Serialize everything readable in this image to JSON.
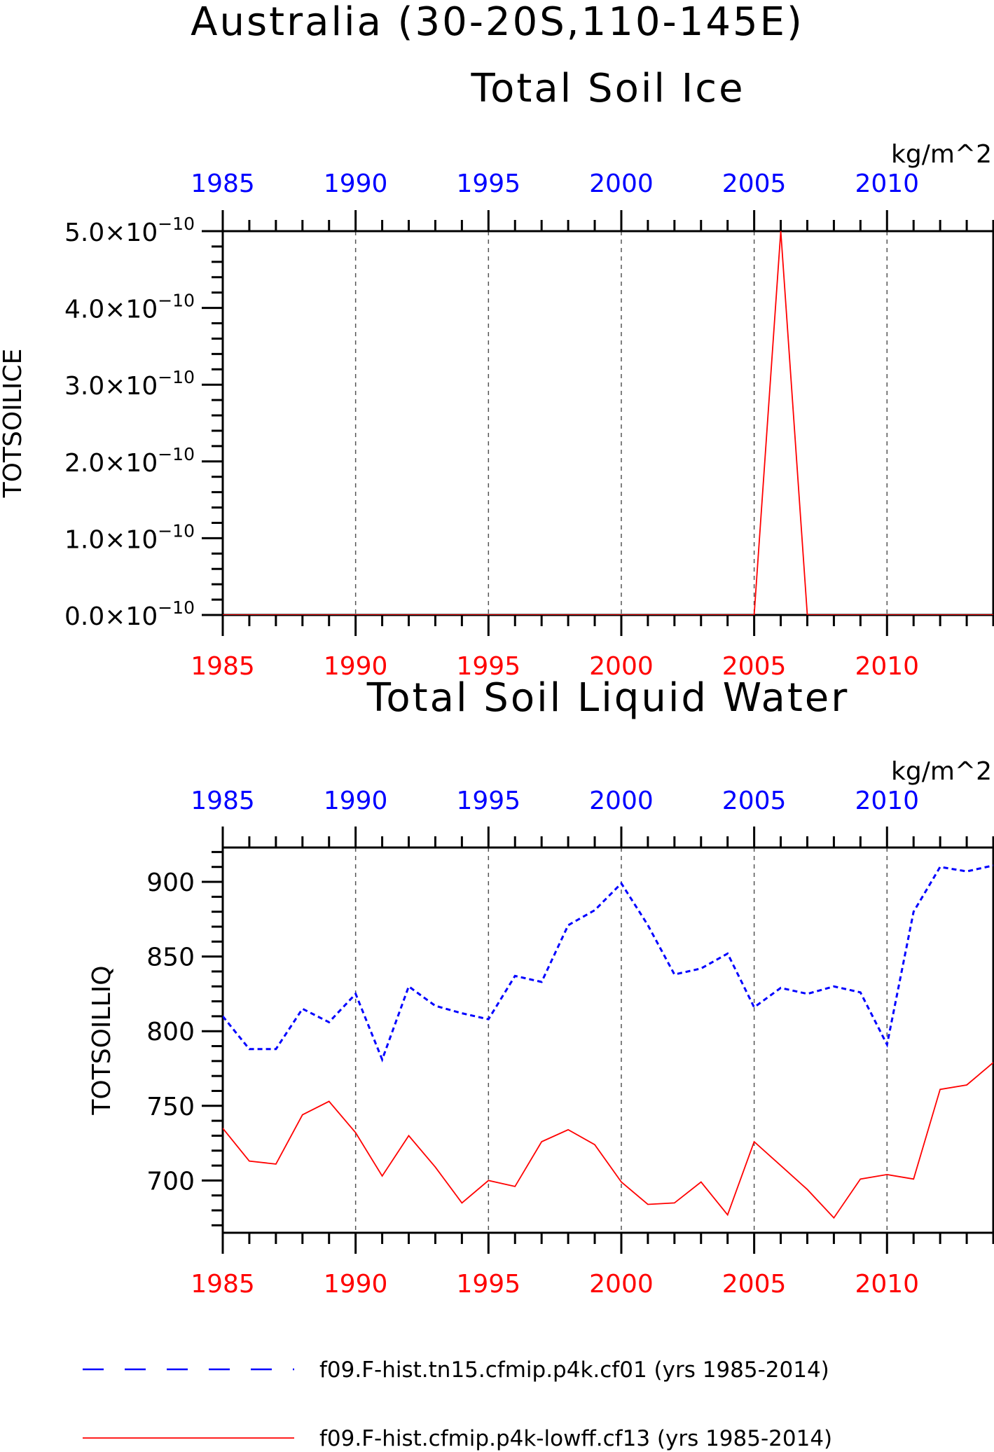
{
  "main_title": "Australia (30-20S,110-145E)",
  "legend": {
    "entries": [
      {
        "label": "f09.F-hist.tn15.cfmip.p4k.cf01 (yrs 1985-2014)",
        "color": "#0000ff",
        "style": "dashed"
      },
      {
        "label": "f09.F-hist.cfmip.p4k-lowff.cf13 (yrs 1985-2014)",
        "color": "#ff0000",
        "style": "solid"
      }
    ]
  },
  "chart_data": [
    {
      "type": "line",
      "title": "Total Soil Ice",
      "ylabel": "TOTSOILICE",
      "units": "kg/m^2",
      "xlim": [
        1985,
        2014
      ],
      "ylim": [
        0,
        5e-10
      ],
      "x_ticks": [
        1985,
        1990,
        1995,
        2000,
        2005,
        2010
      ],
      "y_ticks": [
        {
          "value": 0,
          "mantissa": "0.0×10",
          "exp": "−10"
        },
        {
          "value": 1e-10,
          "mantissa": "1.0×10",
          "exp": "−10"
        },
        {
          "value": 2e-10,
          "mantissa": "2.0×10",
          "exp": "−10"
        },
        {
          "value": 3e-10,
          "mantissa": "3.0×10",
          "exp": "−10"
        },
        {
          "value": 4e-10,
          "mantissa": "4.0×10",
          "exp": "−10"
        },
        {
          "value": 5e-10,
          "mantissa": "5.0×10",
          "exp": "−10"
        }
      ],
      "grid": "vertical dashed at major x ticks",
      "series": [
        {
          "color": "#ff0000",
          "style": "solid",
          "x": [
            1985,
            1986,
            1987,
            1988,
            1989,
            1990,
            1991,
            1992,
            1993,
            1994,
            1995,
            1996,
            1997,
            1998,
            1999,
            2000,
            2001,
            2002,
            2003,
            2004,
            2005,
            2006,
            2007,
            2008,
            2009,
            2010,
            2011,
            2012,
            2013,
            2014
          ],
          "y": [
            0,
            0,
            0,
            0,
            0,
            0,
            0,
            0,
            0,
            0,
            0,
            0,
            0,
            0,
            0,
            0,
            0,
            0,
            0,
            0,
            0,
            5e-10,
            0,
            0,
            0,
            0,
            0,
            0,
            0,
            0
          ]
        }
      ]
    },
    {
      "type": "line",
      "title": "Total Soil Liquid Water",
      "ylabel": "TOTSOILLIQ",
      "units": "kg/m^2",
      "xlim": [
        1985,
        2014
      ],
      "ylim": [
        665,
        923
      ],
      "x_ticks": [
        1985,
        1990,
        1995,
        2000,
        2005,
        2010
      ],
      "y_ticks": [
        {
          "value": 700,
          "label": "700"
        },
        {
          "value": 750,
          "label": "750"
        },
        {
          "value": 800,
          "label": "800"
        },
        {
          "value": 850,
          "label": "850"
        },
        {
          "value": 900,
          "label": "900"
        }
      ],
      "grid": "vertical dashed at major x ticks",
      "series": [
        {
          "color": "#0000ff",
          "style": "dashed",
          "x": [
            1985,
            1986,
            1987,
            1988,
            1989,
            1990,
            1991,
            1992,
            1993,
            1994,
            1995,
            1996,
            1997,
            1998,
            1999,
            2000,
            2001,
            2002,
            2003,
            2004,
            2005,
            2006,
            2007,
            2008,
            2009,
            2010,
            2011,
            2012,
            2013,
            2014
          ],
          "y": [
            810,
            788,
            788,
            815,
            806,
            825,
            781,
            830,
            817,
            812,
            808,
            837,
            833,
            871,
            881,
            899,
            871,
            838,
            842,
            852,
            816,
            829,
            825,
            830,
            826,
            791,
            880,
            910,
            907,
            911
          ]
        },
        {
          "color": "#ff0000",
          "style": "solid",
          "x": [
            1985,
            1986,
            1987,
            1988,
            1989,
            1990,
            1991,
            1992,
            1993,
            1994,
            1995,
            1996,
            1997,
            1998,
            1999,
            2000,
            2001,
            2002,
            2003,
            2004,
            2005,
            2006,
            2007,
            2008,
            2009,
            2010,
            2011,
            2012,
            2013,
            2014
          ],
          "y": [
            735,
            713,
            711,
            744,
            753,
            732,
            703,
            730,
            709,
            685,
            700,
            696,
            726,
            734,
            724,
            699,
            684,
            685,
            699,
            677,
            726,
            710,
            694,
            675,
            701,
            704,
            701,
            761,
            764,
            779
          ]
        }
      ]
    }
  ]
}
